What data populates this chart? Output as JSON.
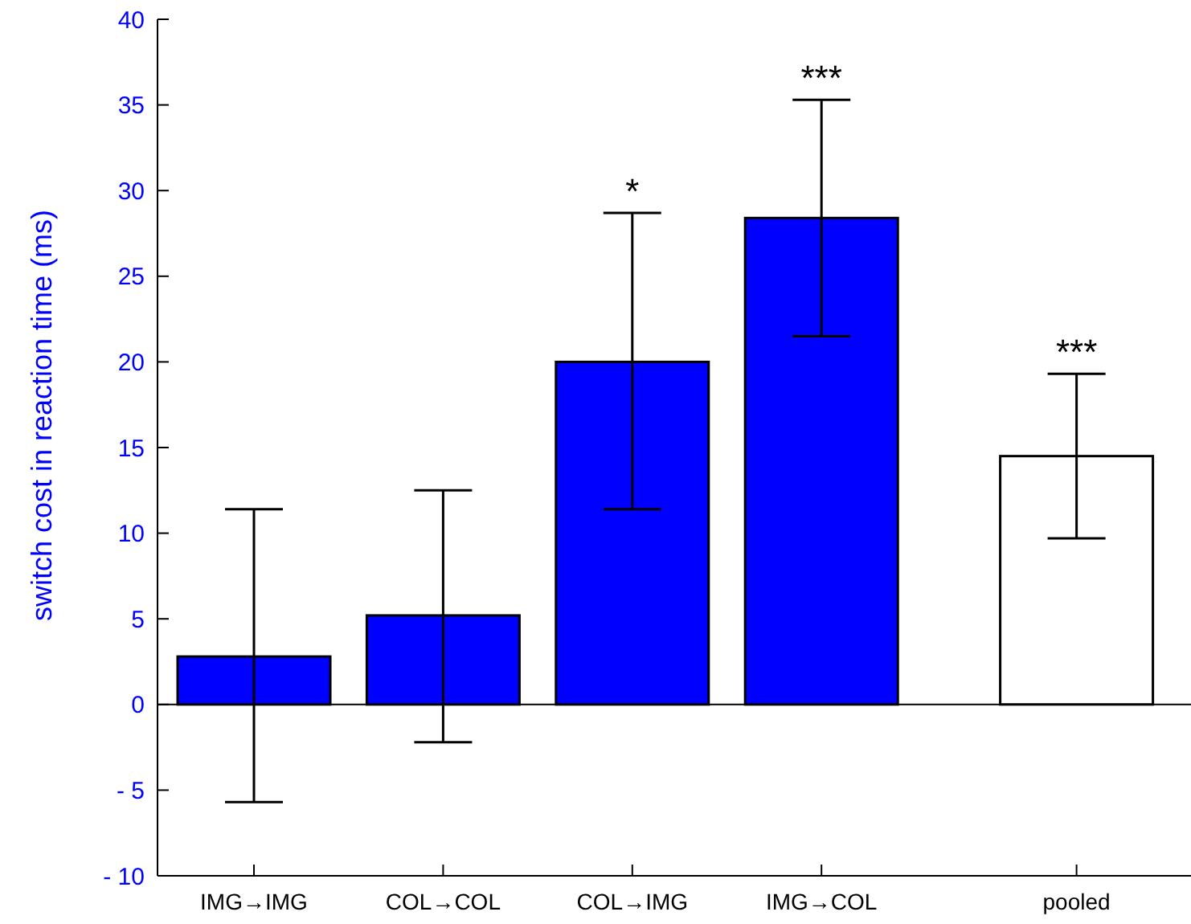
{
  "chart_data": {
    "type": "bar",
    "ylabel": "switch cost in reaction time (ms)",
    "categories": [
      "IMG→IMG",
      "COL→COL",
      "COL→IMG",
      "IMG→COL",
      "pooled"
    ],
    "values": [
      2.8,
      5.2,
      20.0,
      28.4,
      14.5
    ],
    "colors": [
      "#0000ff",
      "#0000ff",
      "#0000ff",
      "#0000ff",
      "#ffffff"
    ],
    "errors": [
      [
        -5.7,
        11.4
      ],
      [
        -2.2,
        12.5
      ],
      [
        11.4,
        28.7
      ],
      [
        21.5,
        35.3
      ],
      [
        9.7,
        19.3
      ]
    ],
    "ylim": [
      -10,
      40
    ],
    "yticks": [
      {
        "value": -10,
        "label": "- 10"
      },
      {
        "value": -5,
        "label": "- 5"
      },
      0,
      5,
      10,
      15,
      20,
      25,
      30,
      35,
      40
    ],
    "ref_lines": [
      {
        "axis": "y",
        "value": 0,
        "color": "#000000"
      }
    ],
    "annotations": [
      {
        "text": "*",
        "x": "COL→IMG",
        "y": 28.7
      },
      {
        "text": "***",
        "x": "IMG→COL",
        "y": 35.3
      },
      {
        "text": "***",
        "x": "pooled",
        "y": 19.3
      }
    ],
    "grid": false
  }
}
